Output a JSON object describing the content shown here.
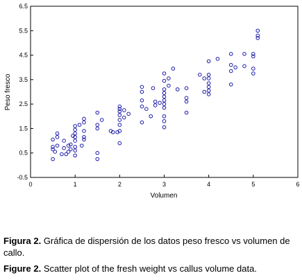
{
  "chart_data": {
    "type": "scatter",
    "xlabel": "Volumen",
    "ylabel": "Peso fresco",
    "xlim": [
      0,
      6
    ],
    "ylim": [
      -0.5,
      6.5
    ],
    "x_ticks": [
      "0",
      "1",
      "2",
      "3",
      "4",
      "5",
      "6"
    ],
    "y_ticks": [
      "-0.5",
      "0.5",
      "1.5",
      "2.5",
      "3.5",
      "4.5",
      "5.5",
      "6.5"
    ],
    "grid": false,
    "marker_color": "#1a1aa8",
    "points": [
      [
        0.5,
        0.25
      ],
      [
        0.5,
        0.65
      ],
      [
        0.5,
        0.75
      ],
      [
        0.5,
        1.05
      ],
      [
        0.55,
        0.55
      ],
      [
        0.6,
        0.8
      ],
      [
        0.6,
        1.15
      ],
      [
        0.6,
        1.3
      ],
      [
        0.7,
        0.45
      ],
      [
        0.75,
        0.7
      ],
      [
        0.75,
        1.0
      ],
      [
        0.8,
        0.45
      ],
      [
        0.85,
        0.55
      ],
      [
        0.85,
        0.8
      ],
      [
        0.9,
        0.65
      ],
      [
        0.9,
        0.85
      ],
      [
        0.95,
        1.2
      ],
      [
        1.0,
        0.4
      ],
      [
        1.0,
        0.6
      ],
      [
        1.0,
        0.75
      ],
      [
        1.0,
        1.0
      ],
      [
        1.0,
        1.15
      ],
      [
        1.0,
        1.3
      ],
      [
        1.0,
        1.45
      ],
      [
        1.0,
        1.6
      ],
      [
        1.1,
        1.65
      ],
      [
        1.15,
        0.8
      ],
      [
        1.2,
        1.05
      ],
      [
        1.2,
        1.15
      ],
      [
        1.2,
        1.4
      ],
      [
        1.2,
        1.75
      ],
      [
        1.2,
        1.9
      ],
      [
        1.5,
        0.25
      ],
      [
        1.5,
        0.5
      ],
      [
        1.5,
        1.5
      ],
      [
        1.5,
        1.65
      ],
      [
        1.5,
        2.15
      ],
      [
        1.6,
        1.85
      ],
      [
        1.8,
        1.4
      ],
      [
        1.85,
        1.35
      ],
      [
        1.95,
        1.35
      ],
      [
        2.0,
        0.9
      ],
      [
        2.0,
        1.4
      ],
      [
        2.0,
        1.65
      ],
      [
        2.0,
        1.85
      ],
      [
        2.0,
        2.05
      ],
      [
        2.0,
        2.2
      ],
      [
        2.0,
        2.3
      ],
      [
        2.0,
        2.4
      ],
      [
        2.1,
        1.95
      ],
      [
        2.1,
        2.25
      ],
      [
        2.2,
        2.1
      ],
      [
        2.5,
        1.75
      ],
      [
        2.5,
        2.4
      ],
      [
        2.5,
        2.65
      ],
      [
        2.5,
        3.0
      ],
      [
        2.5,
        3.2
      ],
      [
        2.6,
        2.3
      ],
      [
        2.7,
        2.0
      ],
      [
        2.75,
        3.15
      ],
      [
        2.8,
        2.45
      ],
      [
        2.8,
        2.6
      ],
      [
        2.9,
        2.55
      ],
      [
        3.0,
        1.55
      ],
      [
        3.0,
        1.8
      ],
      [
        3.0,
        2.0
      ],
      [
        3.0,
        2.35
      ],
      [
        3.0,
        2.5
      ],
      [
        3.0,
        2.65
      ],
      [
        3.0,
        2.8
      ],
      [
        3.0,
        2.95
      ],
      [
        3.0,
        3.1
      ],
      [
        3.0,
        3.45
      ],
      [
        3.0,
        3.75
      ],
      [
        3.1,
        3.25
      ],
      [
        3.1,
        3.55
      ],
      [
        3.2,
        3.95
      ],
      [
        3.3,
        3.1
      ],
      [
        3.5,
        2.15
      ],
      [
        3.5,
        2.6
      ],
      [
        3.5,
        2.75
      ],
      [
        3.5,
        3.15
      ],
      [
        3.8,
        3.7
      ],
      [
        3.9,
        3.0
      ],
      [
        3.9,
        3.55
      ],
      [
        4.0,
        2.9
      ],
      [
        4.0,
        3.05
      ],
      [
        4.0,
        3.2
      ],
      [
        4.0,
        3.35
      ],
      [
        4.0,
        3.55
      ],
      [
        4.0,
        3.7
      ],
      [
        4.0,
        4.25
      ],
      [
        4.2,
        4.35
      ],
      [
        4.5,
        3.3
      ],
      [
        4.5,
        3.85
      ],
      [
        4.5,
        4.1
      ],
      [
        4.5,
        4.55
      ],
      [
        4.6,
        4.0
      ],
      [
        4.8,
        4.05
      ],
      [
        4.8,
        4.55
      ],
      [
        5.0,
        3.75
      ],
      [
        5.0,
        3.95
      ],
      [
        5.0,
        4.45
      ],
      [
        5.0,
        4.55
      ],
      [
        5.1,
        5.2
      ],
      [
        5.1,
        5.3
      ],
      [
        5.1,
        5.5
      ]
    ]
  },
  "captions": {
    "es_label": "Figura 2.",
    "es_text": "Gráfica de dispersión de los datos peso fresco vs volumen de callo.",
    "en_label": "Figure 2.",
    "en_text": "Scatter plot of the fresh weight vs callus volume data."
  }
}
